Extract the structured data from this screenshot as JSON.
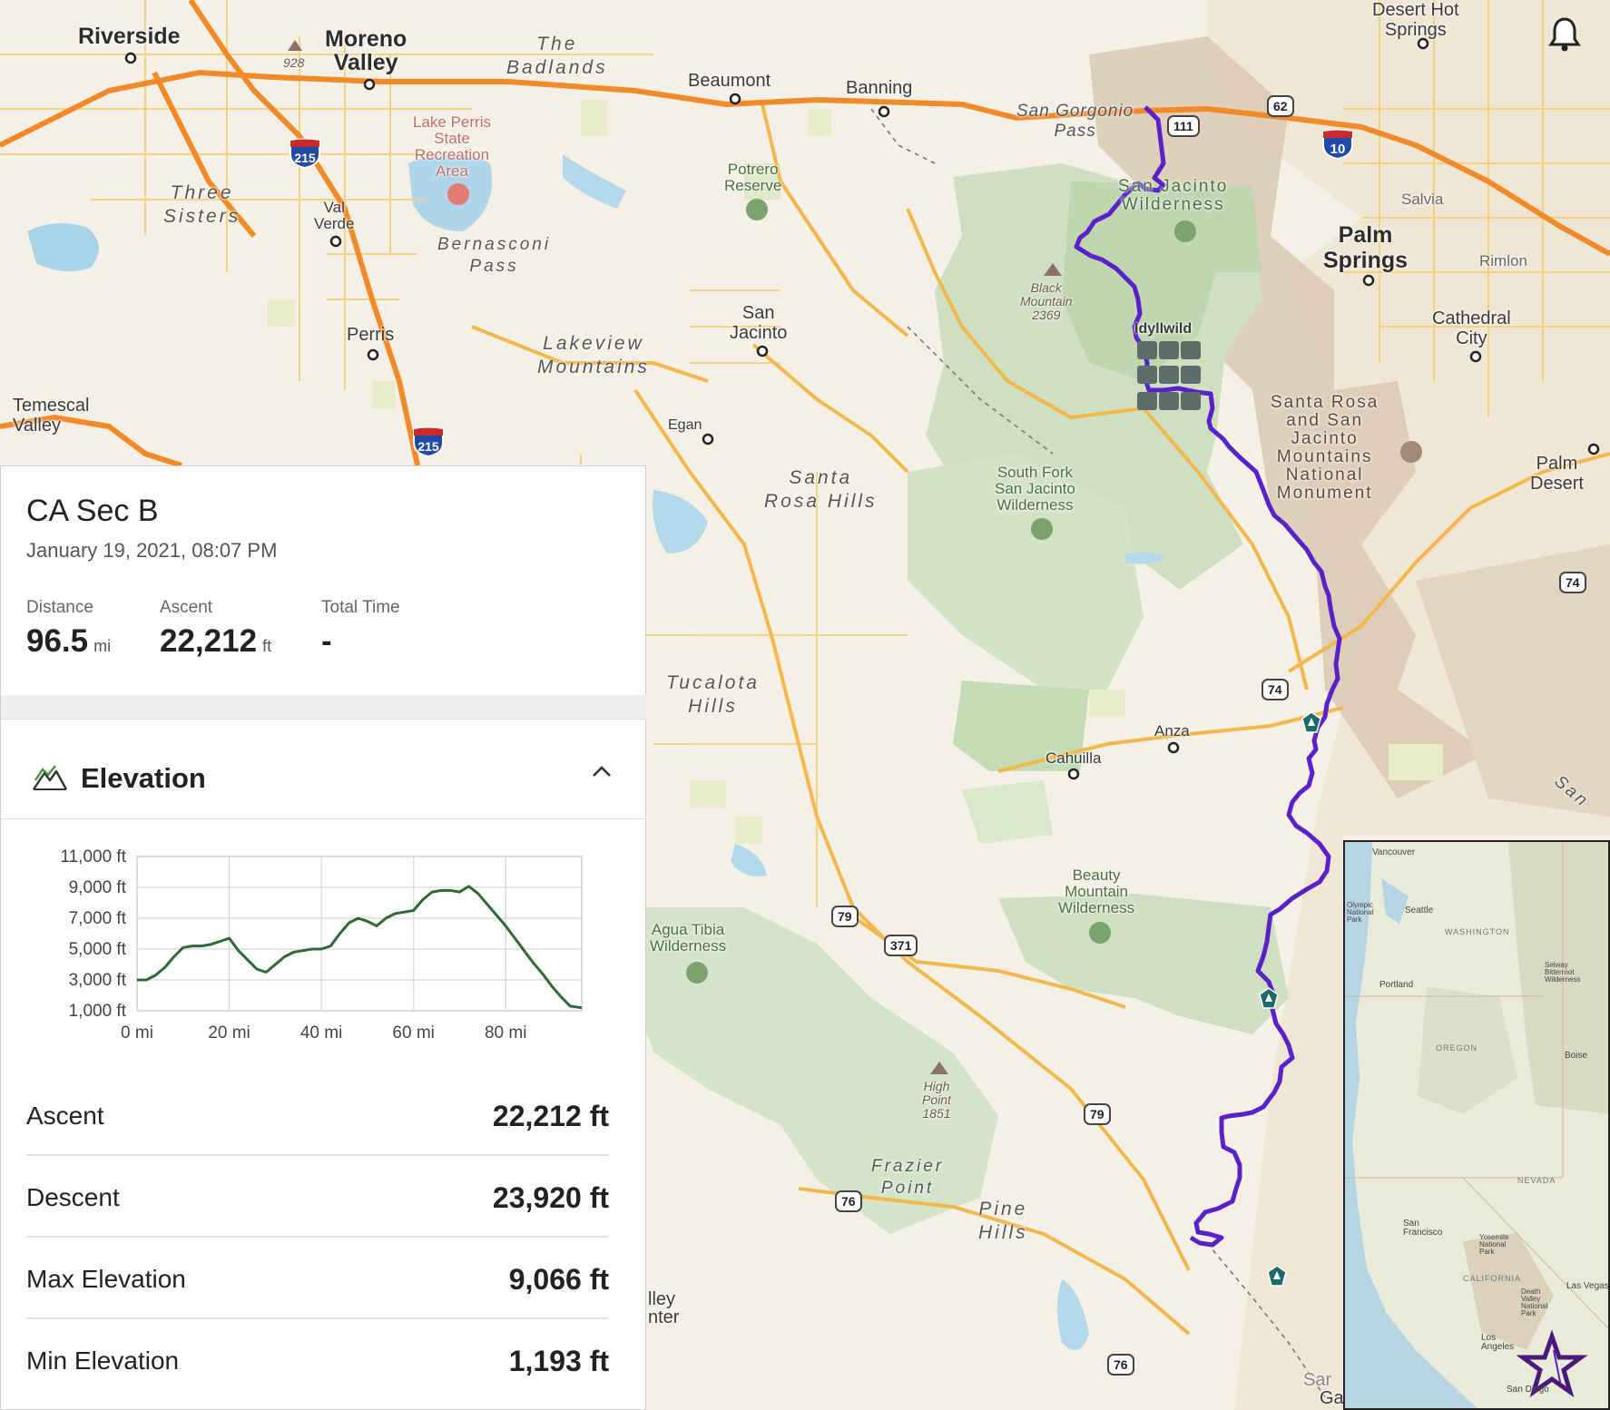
{
  "map": {
    "places": {
      "riverside": "Riverside",
      "moreno_valley": "Moreno\nValley",
      "badlands": "The\nBadlands",
      "beaumont": "Beaumont",
      "banning": "Banning",
      "san_gorgonio_pass": "San Gorgonio\nPass",
      "desert_hot_springs": "Desert Hot\nSprings",
      "lake_perris": "Lake Perris\nState\nRecreation\nArea",
      "potrero": "Potrero\nReserve",
      "three_sisters": "Three\nSisters",
      "val_verde": "Val\nVerde",
      "bernasconi": "Bernasconi\nPass",
      "san_jacinto_wild": "San Jacinto\nWilderness",
      "salvia": "Salvia",
      "palm_springs": "Palm\nSprings",
      "rimlon": "Rimlon",
      "black_mountain": "Black\nMountain\n2369",
      "idyllwild": "Idyllwild",
      "cathedral_city": "Cathedral\nCity",
      "perris": "Perris",
      "lakeview": "Lakeview\nMountains",
      "san_jacinto": "San\nJacinto",
      "temescal": "Temescal\nValley",
      "egan": "Egan",
      "santa_rosa_hills": "Santa\nRosa Hills",
      "south_fork": "South Fork\nSan Jacinto\nWilderness",
      "monument": "Santa Rosa\nand San\nJacinto\nMountains\nNational\nMonument",
      "palm_desert": "Palm\nDesert",
      "tucalota": "Tucalota\nHills",
      "anza": "Anza",
      "cahuilla": "Cahuilla",
      "beauty_mountain": "Beauty\nMountain\nWilderness",
      "agua_tibia": "Agua Tibia\nWilderness",
      "high_point": "High\nPoint\n1851",
      "frazier": "Frazier\nPoint",
      "pine_hills": "Pine\nHills",
      "valley_center": "lley\nnter",
      "san_edge": "San",
      "sar": "Sar",
      "ga": "Ga",
      "peak_928": "928"
    },
    "shields": {
      "i215a": "215",
      "i215b": "215",
      "i10": "10",
      "sr111": "111",
      "sr62": "62",
      "sr74a": "74",
      "sr74b": "74",
      "sr79a": "79",
      "sr79b": "79",
      "sr371": "371",
      "sr76a": "76",
      "sr76b": "76"
    },
    "route_color": "#5b21c9",
    "inset_labels": {
      "vancouver": "Vancouver",
      "seattle": "Seattle",
      "olympic": "Olympic\nNational\nPark",
      "washington": "WASHINGTON",
      "portland": "Portland",
      "selway": "Selway\nBitterroot\nWilderness",
      "oregon": "OREGON",
      "boise": "Boise",
      "nevada": "NEVADA",
      "california": "CALIFORNIA",
      "san_francisco": "San\nFrancisco",
      "yosemite": "Yosemite\nNational\nPark",
      "las_vegas": "Las Vegas",
      "death_valley": "Death\nValley\nNational\nPark",
      "los_angeles": "Los\nAngeles",
      "san_diego": "San Diego"
    }
  },
  "panel": {
    "title": "CA Sec B",
    "date": "January 19, 2021, 08:07 PM",
    "stats": [
      {
        "label": "Distance",
        "value": "96.5",
        "unit": "mi"
      },
      {
        "label": "Ascent",
        "value": "22,212",
        "unit": "ft"
      },
      {
        "label": "Total Time",
        "value": "-",
        "unit": ""
      }
    ],
    "section_title": "Elevation",
    "rows": [
      {
        "label": "Ascent",
        "value": "22,212 ft"
      },
      {
        "label": "Descent",
        "value": "23,920 ft"
      },
      {
        "label": "Max Elevation",
        "value": "9,066 ft"
      },
      {
        "label": "Min Elevation",
        "value": "1,193 ft"
      }
    ]
  },
  "chart_data": {
    "type": "line",
    "xlabel": "",
    "ylabel": "",
    "x_ticks": [
      "0 mi",
      "20 mi",
      "40 mi",
      "60 mi",
      "80 mi"
    ],
    "y_ticks": [
      "11,000 ft",
      "9,000 ft",
      "7,000 ft",
      "5,000 ft",
      "3,000 ft",
      "1,000 ft"
    ],
    "xlim": [
      0,
      96.5
    ],
    "ylim": [
      1000,
      11000
    ],
    "grid": true,
    "line_color": "#2e6b34",
    "series": [
      {
        "x": [
          0,
          2,
          4,
          6,
          8,
          10,
          12,
          14,
          16,
          18,
          20,
          22,
          24,
          26,
          28,
          30,
          32,
          34,
          36,
          38,
          40,
          42,
          44,
          46,
          48,
          50,
          52,
          54,
          56,
          58,
          60,
          62,
          64,
          66,
          68,
          70,
          72,
          74,
          76,
          78,
          80,
          82,
          84,
          86,
          88,
          90,
          92,
          94,
          96.5
        ],
        "y": [
          3000,
          3000,
          3300,
          3800,
          4500,
          5100,
          5200,
          5200,
          5300,
          5500,
          5700,
          4900,
          4300,
          3700,
          3500,
          4000,
          4500,
          4800,
          4900,
          5000,
          5000,
          5200,
          6000,
          6700,
          7000,
          6800,
          6500,
          7000,
          7300,
          7400,
          7500,
          8200,
          8700,
          8800,
          8800,
          8700,
          9066,
          8600,
          7900,
          7200,
          6500,
          5700,
          4900,
          4100,
          3400,
          2600,
          1900,
          1300,
          1193
        ]
      }
    ]
  }
}
